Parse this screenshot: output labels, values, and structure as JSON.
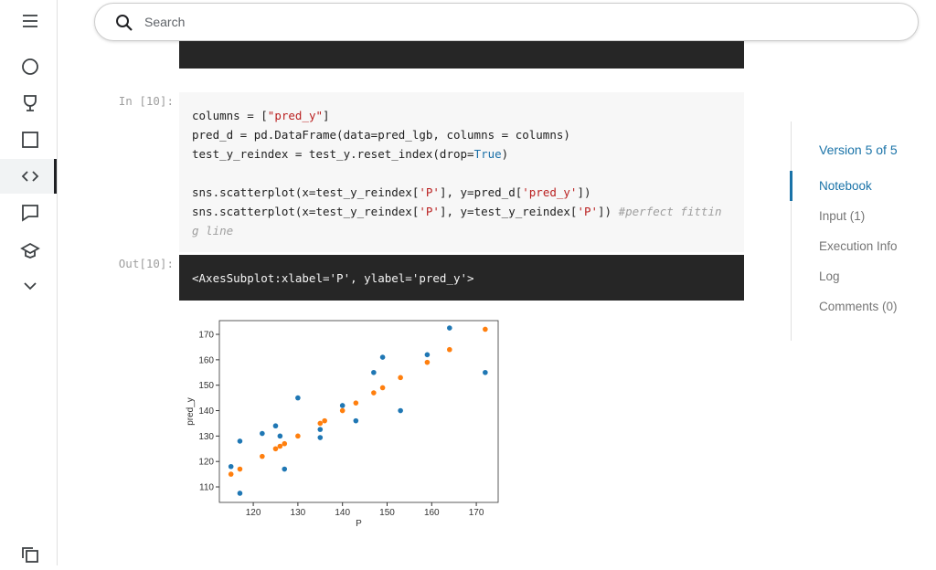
{
  "search": {
    "placeholder": "Search"
  },
  "cells": {
    "input": {
      "prompt": "In [10]:",
      "lines": [
        [
          {
            "text": "columns = ["
          },
          {
            "text": "\"pred_y\"",
            "color": "#ba2121"
          },
          {
            "text": "]"
          }
        ],
        [
          {
            "text": "pred_d = pd.DataFrame(data=pred_lgb, columns = columns)"
          }
        ],
        [
          {
            "text": "test_y_reindex = test_y.reset_index(drop="
          },
          {
            "text": "True",
            "color": "#1a6fa8"
          },
          {
            "text": ")"
          }
        ],
        [],
        [
          {
            "text": "sns.scatterplot(x=test_y_reindex["
          },
          {
            "text": "'P'",
            "color": "#ba2121"
          },
          {
            "text": "], y=pred_d["
          },
          {
            "text": "'pred_y'",
            "color": "#ba2121"
          },
          {
            "text": "])"
          }
        ],
        [
          {
            "text": "sns.scatterplot(x=test_y_reindex["
          },
          {
            "text": "'P'",
            "color": "#ba2121"
          },
          {
            "text": "], y=test_y_reindex["
          },
          {
            "text": "'P'",
            "color": "#ba2121"
          },
          {
            "text": "]) "
          },
          {
            "text": "#perfect fittin",
            "color": "#9e9e9e",
            "italic": true
          }
        ],
        [
          {
            "text": "g line",
            "color": "#9e9e9e",
            "italic": true
          }
        ]
      ]
    },
    "output": {
      "prompt": "Out[10]:",
      "text": "<AxesSubplot:xlabel='P', ylabel='pred_y'>"
    }
  },
  "side_nav": {
    "version": "Version 5 of 5",
    "items": [
      "Notebook",
      "Input (1)",
      "Execution Info",
      "Log",
      "Comments (0)"
    ],
    "active": 0
  },
  "chart_data": {
    "type": "scatter",
    "xlabel": "P",
    "ylabel": "pred_y",
    "xlim": [
      112.4,
      174.9
    ],
    "ylim": [
      103.9,
      175.4
    ],
    "xticks": [
      120,
      130,
      140,
      150,
      160,
      170
    ],
    "yticks": [
      110,
      120,
      130,
      140,
      150,
      160,
      170
    ],
    "series": [
      {
        "color": "#1f77b4",
        "x": [
          115,
          117,
          117,
          122,
          125,
          126,
          127,
          130,
          135,
          135,
          140,
          143,
          147,
          149,
          153,
          159,
          164,
          172
        ],
        "values": [
          118,
          128,
          107.5,
          131,
          134,
          130,
          117,
          145,
          132.6,
          129.4,
          142,
          136,
          155,
          161,
          140,
          162,
          172.5,
          155
        ]
      },
      {
        "color": "#ff7f0e",
        "x": [
          115,
          117,
          122,
          125,
          126,
          127,
          130,
          135,
          136,
          140,
          143,
          147,
          149,
          153,
          159,
          164,
          172
        ],
        "values": [
          115,
          117,
          122,
          125,
          126,
          127,
          130,
          135,
          136,
          140,
          143,
          147,
          149,
          153,
          159,
          164,
          172
        ]
      }
    ]
  }
}
